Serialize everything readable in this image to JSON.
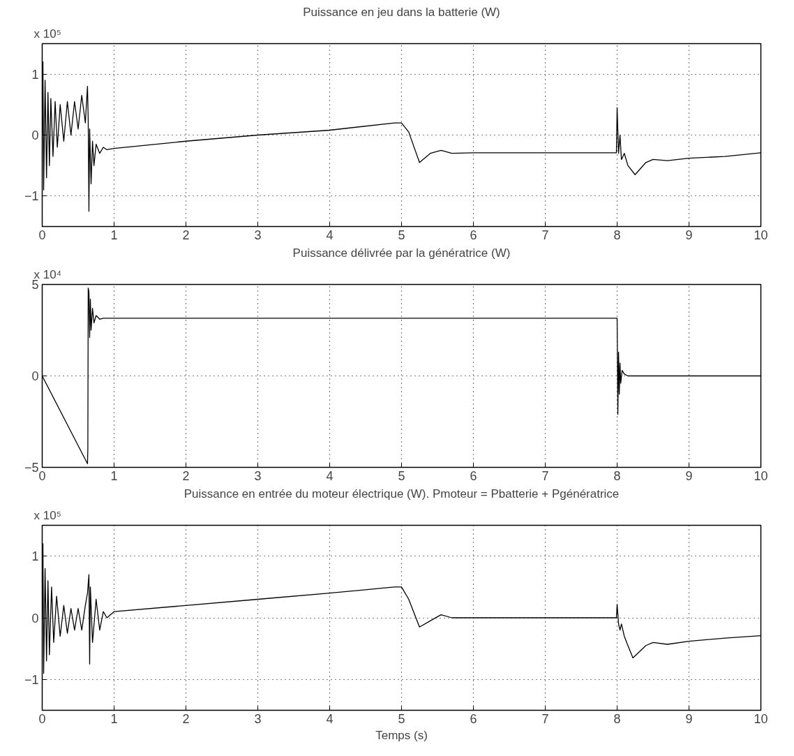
{
  "chart_data": [
    {
      "type": "line",
      "title": "Puissance en jeu dans la batterie (W)",
      "annotations": [
        "x 10⁵"
      ],
      "xlim": [
        0,
        10
      ],
      "xticks": [
        0,
        1,
        2,
        3,
        4,
        5,
        6,
        7,
        8,
        9,
        10
      ],
      "ylim": [
        -1.5,
        1.5
      ],
      "yticks": [
        -1,
        0,
        1
      ],
      "grid": true,
      "series": [
        {
          "color": "#000000",
          "x": [
            0,
            0.01,
            0.02,
            0.04,
            0.06,
            0.08,
            0.1,
            0.12,
            0.15,
            0.18,
            0.21,
            0.25,
            0.3,
            0.35,
            0.4,
            0.45,
            0.5,
            0.55,
            0.6,
            0.63,
            0.64,
            0.65,
            0.66,
            0.68,
            0.7,
            0.72,
            0.75,
            0.8,
            0.85,
            0.9,
            1,
            2,
            3,
            4,
            4.9,
            5,
            5.1,
            5.25,
            5.4,
            5.55,
            5.7,
            6,
            7,
            7.99,
            8.0,
            8.02,
            8.04,
            8.06,
            8.1,
            8.15,
            8.25,
            8.4,
            8.5,
            8.7,
            9,
            9.5,
            10
          ],
          "values": [
            0,
            1.2,
            -0.9,
            0.9,
            -0.7,
            0.7,
            -0.5,
            0.6,
            -0.35,
            0.55,
            -0.2,
            0.5,
            -0.1,
            0.55,
            0,
            0.55,
            0.1,
            0.65,
            0.2,
            0.8,
            0.25,
            -1.25,
            0.1,
            -0.8,
            -0.1,
            -0.5,
            -0.15,
            -0.3,
            -0.2,
            -0.24,
            -0.22,
            -0.1,
            0,
            0.08,
            0.2,
            0.2,
            0.05,
            -0.45,
            -0.3,
            -0.25,
            -0.3,
            -0.29,
            -0.29,
            -0.29,
            0.45,
            -0.3,
            0,
            -0.4,
            -0.3,
            -0.5,
            -0.65,
            -0.45,
            -0.4,
            -0.42,
            -0.38,
            -0.35,
            -0.29
          ]
        }
      ]
    },
    {
      "type": "line",
      "title": "Puissance délivrée par la génératrice (W)",
      "annotations": [
        "x 10⁴"
      ],
      "xlim": [
        0,
        10
      ],
      "xticks": [
        0,
        1,
        2,
        3,
        4,
        5,
        6,
        7,
        8,
        9,
        10
      ],
      "ylim": [
        -5,
        5
      ],
      "yticks": [
        -5,
        0,
        5
      ],
      "grid": true,
      "series": [
        {
          "color": "#000000",
          "x": [
            0,
            0.63,
            0.635,
            0.64,
            0.65,
            0.66,
            0.67,
            0.68,
            0.7,
            0.72,
            0.75,
            0.8,
            0.85,
            1,
            7.99,
            8.0,
            8.01,
            8.02,
            8.03,
            8.04,
            8.05,
            8.07,
            8.1,
            8.15,
            10
          ],
          "values": [
            0,
            -4.8,
            -4,
            4.8,
            4.6,
            2.1,
            4.2,
            2.5,
            3.7,
            2.9,
            3.3,
            3.1,
            3.15,
            3.15,
            3.15,
            3.15,
            -2.1,
            1.3,
            -1.0,
            0.7,
            -0.4,
            0.3,
            0.1,
            0,
            0
          ]
        }
      ]
    },
    {
      "type": "line",
      "title": "Puissance en entrée du moteur électrique (W). Pmoteur = Pbatterie + Pgénératrice",
      "xlabel": "Temps (s)",
      "annotations": [
        "x 10⁵"
      ],
      "xlim": [
        0,
        10
      ],
      "xticks": [
        0,
        1,
        2,
        3,
        4,
        5,
        6,
        7,
        8,
        9,
        10
      ],
      "ylim": [
        -1.5,
        1.5
      ],
      "yticks": [
        -1,
        0,
        1
      ],
      "grid": true,
      "series": [
        {
          "color": "#000000",
          "x": [
            0,
            0.01,
            0.02,
            0.04,
            0.06,
            0.08,
            0.1,
            0.13,
            0.16,
            0.2,
            0.25,
            0.3,
            0.35,
            0.4,
            0.45,
            0.5,
            0.55,
            0.6,
            0.63,
            0.65,
            0.66,
            0.67,
            0.7,
            0.75,
            0.8,
            0.85,
            0.9,
            1,
            2,
            3,
            4,
            4.9,
            5,
            5.1,
            5.25,
            5.4,
            5.55,
            5.7,
            6,
            7,
            7.99,
            8.0,
            8.02,
            8.04,
            8.06,
            8.1,
            8.15,
            8.22,
            8.4,
            8.5,
            8.7,
            9,
            9.5,
            10
          ],
          "values": [
            0,
            1.2,
            -0.9,
            0.8,
            -0.7,
            0.6,
            -0.6,
            0.5,
            -0.4,
            0.35,
            -0.3,
            0.2,
            -0.25,
            0.15,
            -0.2,
            0.15,
            -0.2,
            0.2,
            0.4,
            0.7,
            -0.75,
            0.5,
            -0.4,
            0.3,
            -0.2,
            0.1,
            0,
            0.1,
            0.2,
            0.3,
            0.4,
            0.5,
            0.5,
            0.3,
            -0.15,
            -0.05,
            0.05,
            0,
            0,
            0,
            0,
            0.22,
            -0.1,
            -0.2,
            -0.1,
            -0.3,
            -0.45,
            -0.65,
            -0.45,
            -0.4,
            -0.43,
            -0.38,
            -0.33,
            -0.29
          ]
        }
      ]
    }
  ]
}
